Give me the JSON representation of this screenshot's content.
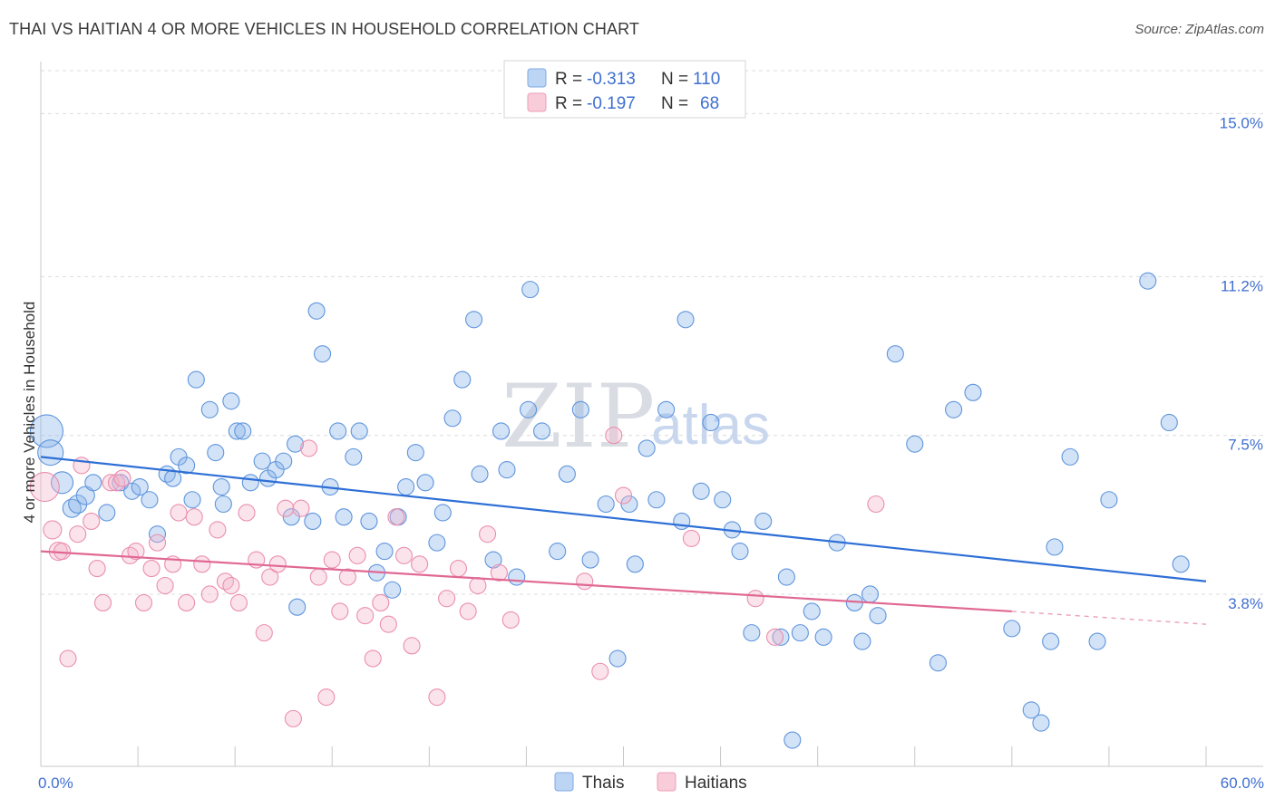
{
  "header": {
    "title": "THAI VS HAITIAN 4 OR MORE VEHICLES IN HOUSEHOLD CORRELATION CHART",
    "source": "Source: ZipAtlas.com"
  },
  "watermark": {
    "zip": "ZIP",
    "atlas": "atlas"
  },
  "legend": {
    "rows": [
      {
        "r_label": "R =",
        "r_value": "-0.313",
        "n_label": "N =",
        "n_value": "110",
        "color": "#a9c8f0"
      },
      {
        "r_label": "R =",
        "r_value": "-0.197",
        "n_label": "N =",
        "n_value": "68",
        "color": "#f5b6ca"
      }
    ]
  },
  "bottom_legend": [
    {
      "label": "Thais",
      "color": "#a9c8f0"
    },
    {
      "label": "Haitians",
      "color": "#f5b6ca"
    }
  ],
  "chart_data": {
    "type": "scatter",
    "ylabel": "4 or more Vehicles in Household",
    "xlabel": "",
    "xlim": [
      0,
      60
    ],
    "ylim": [
      0.0,
      16.0
    ],
    "x_tick_labels": [
      {
        "value": 0,
        "label": "0.0%"
      },
      {
        "value": 60,
        "label": "60.0%"
      }
    ],
    "y_tick_labels": [
      {
        "value": 3.8,
        "label": "3.8%"
      },
      {
        "value": 7.5,
        "label": "7.5%"
      },
      {
        "value": 11.2,
        "label": "11.2%"
      },
      {
        "value": 15.0,
        "label": "15.0%"
      }
    ],
    "grid": "horizontal-dashed",
    "series": [
      {
        "name": "Thais",
        "color": "#8ab4ea",
        "stroke": "#5f95dc",
        "trend": {
          "x0": 0,
          "y0": 7.0,
          "x1": 60,
          "y1": 4.1
        },
        "points": [
          [
            0.3,
            7.6,
            18
          ],
          [
            0.5,
            7.1,
            14
          ],
          [
            1.1,
            6.4,
            12
          ],
          [
            1.6,
            5.8,
            10
          ],
          [
            1.9,
            5.9,
            10
          ],
          [
            2.3,
            6.1,
            10
          ],
          [
            2.7,
            6.4,
            9
          ],
          [
            3.4,
            5.7,
            9
          ],
          [
            4.1,
            6.4,
            9
          ],
          [
            4.7,
            6.2,
            9
          ],
          [
            5.1,
            6.3,
            9
          ],
          [
            5.6,
            6.0,
            9
          ],
          [
            6.0,
            5.2,
            9
          ],
          [
            6.5,
            6.6,
            9
          ],
          [
            6.8,
            6.5,
            9
          ],
          [
            7.1,
            7.0,
            9
          ],
          [
            7.5,
            6.8,
            9
          ],
          [
            7.8,
            6.0,
            9
          ],
          [
            8.0,
            8.8,
            9
          ],
          [
            8.7,
            8.1,
            9
          ],
          [
            9.0,
            7.1,
            9
          ],
          [
            9.4,
            5.9,
            9
          ],
          [
            9.3,
            6.3,
            9
          ],
          [
            9.8,
            8.3,
            9
          ],
          [
            10.1,
            7.6,
            9
          ],
          [
            10.4,
            7.6,
            9
          ],
          [
            10.8,
            6.4,
            9
          ],
          [
            11.4,
            6.9,
            9
          ],
          [
            11.7,
            6.5,
            9
          ],
          [
            12.1,
            6.7,
            9
          ],
          [
            12.5,
            6.9,
            9
          ],
          [
            12.9,
            5.6,
            9
          ],
          [
            13.2,
            3.5,
            9
          ],
          [
            13.1,
            7.3,
            9
          ],
          [
            14.0,
            5.5,
            9
          ],
          [
            14.2,
            10.4,
            9
          ],
          [
            14.5,
            9.4,
            9
          ],
          [
            14.9,
            6.3,
            9
          ],
          [
            15.3,
            7.6,
            9
          ],
          [
            15.6,
            5.6,
            9
          ],
          [
            16.1,
            7.0,
            9
          ],
          [
            16.4,
            7.6,
            9
          ],
          [
            16.9,
            5.5,
            9
          ],
          [
            17.3,
            4.3,
            9
          ],
          [
            17.7,
            4.8,
            9
          ],
          [
            18.1,
            3.9,
            9
          ],
          [
            18.4,
            5.6,
            9
          ],
          [
            18.8,
            6.3,
            9
          ],
          [
            19.3,
            7.1,
            9
          ],
          [
            19.8,
            6.4,
            9
          ],
          [
            20.4,
            5.0,
            9
          ],
          [
            20.7,
            5.7,
            9
          ],
          [
            21.2,
            7.9,
            9
          ],
          [
            21.7,
            8.8,
            9
          ],
          [
            22.3,
            10.2,
            9
          ],
          [
            22.6,
            6.6,
            9
          ],
          [
            23.3,
            4.6,
            9
          ],
          [
            23.7,
            7.6,
            9
          ],
          [
            24.0,
            6.7,
            9
          ],
          [
            24.5,
            4.2,
            9
          ],
          [
            25.1,
            8.1,
            9
          ],
          [
            25.2,
            10.9,
            9
          ],
          [
            25.8,
            7.6,
            9
          ],
          [
            26.6,
            4.8,
            9
          ],
          [
            27.1,
            6.6,
            9
          ],
          [
            27.8,
            8.1,
            9
          ],
          [
            28.3,
            4.6,
            9
          ],
          [
            29.1,
            5.9,
            9
          ],
          [
            29.7,
            2.3,
            9
          ],
          [
            30.3,
            5.9,
            9
          ],
          [
            30.6,
            4.5,
            9
          ],
          [
            31.2,
            7.2,
            9
          ],
          [
            31.7,
            6.0,
            9
          ],
          [
            32.2,
            8.1,
            9
          ],
          [
            33.0,
            5.5,
            9
          ],
          [
            33.2,
            10.2,
            9
          ],
          [
            34.0,
            6.2,
            9
          ],
          [
            34.5,
            7.8,
            9
          ],
          [
            35.1,
            6.0,
            9
          ],
          [
            35.6,
            5.3,
            9
          ],
          [
            36.0,
            4.8,
            9
          ],
          [
            36.6,
            2.9,
            9
          ],
          [
            37.2,
            5.5,
            9
          ],
          [
            38.1,
            2.8,
            9
          ],
          [
            38.4,
            4.2,
            9
          ],
          [
            38.7,
            0.4,
            9
          ],
          [
            39.1,
            2.9,
            9
          ],
          [
            39.7,
            3.4,
            9
          ],
          [
            40.3,
            2.8,
            9
          ],
          [
            41.0,
            5.0,
            9
          ],
          [
            41.9,
            3.6,
            9
          ],
          [
            42.3,
            2.7,
            9
          ],
          [
            42.7,
            3.8,
            9
          ],
          [
            43.1,
            3.3,
            9
          ],
          [
            44.0,
            9.4,
            9
          ],
          [
            45.0,
            7.3,
            9
          ],
          [
            46.2,
            2.2,
            9
          ],
          [
            47.0,
            8.1,
            9
          ],
          [
            48.0,
            8.5,
            9
          ],
          [
            50.0,
            3.0,
            9
          ],
          [
            51.0,
            1.1,
            9
          ],
          [
            51.5,
            0.8,
            9
          ],
          [
            52.0,
            2.7,
            9
          ],
          [
            52.2,
            4.9,
            9
          ],
          [
            53.0,
            7.0,
            9
          ],
          [
            54.4,
            2.7,
            9
          ],
          [
            55.0,
            6.0,
            9
          ],
          [
            57.0,
            11.1,
            9
          ],
          [
            58.1,
            7.8,
            9
          ],
          [
            58.7,
            4.5,
            9
          ]
        ]
      },
      {
        "name": "Haitians",
        "color": "#f5b6ca",
        "stroke": "#ea8eaf",
        "trend": {
          "x0": 0,
          "y0": 4.8,
          "x1": 50,
          "y1": 3.4,
          "dash_x1": 60,
          "dash_y1": 3.1
        },
        "points": [
          [
            0.2,
            6.3,
            16
          ],
          [
            0.6,
            5.3,
            10
          ],
          [
            0.9,
            4.8,
            10
          ],
          [
            1.1,
            4.8,
            9
          ],
          [
            1.4,
            2.3,
            9
          ],
          [
            1.9,
            5.2,
            9
          ],
          [
            2.1,
            6.8,
            9
          ],
          [
            2.6,
            5.5,
            9
          ],
          [
            2.9,
            4.4,
            9
          ],
          [
            3.2,
            3.6,
            9
          ],
          [
            3.6,
            6.4,
            9
          ],
          [
            3.9,
            6.4,
            9
          ],
          [
            4.2,
            6.5,
            9
          ],
          [
            4.6,
            4.7,
            9
          ],
          [
            4.9,
            4.8,
            9
          ],
          [
            5.3,
            3.6,
            9
          ],
          [
            5.7,
            4.4,
            9
          ],
          [
            6.0,
            5.0,
            9
          ],
          [
            6.4,
            4.0,
            9
          ],
          [
            6.8,
            4.5,
            9
          ],
          [
            7.1,
            5.7,
            9
          ],
          [
            7.5,
            3.6,
            9
          ],
          [
            7.9,
            5.6,
            9
          ],
          [
            8.3,
            4.5,
            9
          ],
          [
            8.7,
            3.8,
            9
          ],
          [
            9.1,
            5.3,
            9
          ],
          [
            9.5,
            4.1,
            9
          ],
          [
            9.8,
            4.0,
            9
          ],
          [
            10.2,
            3.6,
            9
          ],
          [
            10.6,
            5.7,
            9
          ],
          [
            11.1,
            4.6,
            9
          ],
          [
            11.5,
            2.9,
            9
          ],
          [
            11.8,
            4.2,
            9
          ],
          [
            12.2,
            4.5,
            9
          ],
          [
            12.6,
            5.8,
            9
          ],
          [
            13.0,
            0.9,
            9
          ],
          [
            13.4,
            5.8,
            9
          ],
          [
            13.8,
            7.2,
            9
          ],
          [
            14.3,
            4.2,
            9
          ],
          [
            14.7,
            1.4,
            9
          ],
          [
            15.0,
            4.6,
            9
          ],
          [
            15.4,
            3.4,
            9
          ],
          [
            15.8,
            4.2,
            9
          ],
          [
            16.3,
            4.7,
            9
          ],
          [
            16.7,
            3.3,
            9
          ],
          [
            17.1,
            2.3,
            9
          ],
          [
            17.5,
            3.6,
            9
          ],
          [
            17.9,
            3.1,
            9
          ],
          [
            18.3,
            5.6,
            9
          ],
          [
            18.7,
            4.7,
            9
          ],
          [
            19.1,
            2.6,
            9
          ],
          [
            19.5,
            4.5,
            9
          ],
          [
            20.4,
            1.4,
            9
          ],
          [
            20.9,
            3.7,
            9
          ],
          [
            21.5,
            4.4,
            9
          ],
          [
            22.0,
            3.4,
            9
          ],
          [
            22.5,
            4.0,
            9
          ],
          [
            23.0,
            5.2,
            9
          ],
          [
            23.6,
            4.3,
            9
          ],
          [
            24.2,
            3.2,
            9
          ],
          [
            28.0,
            4.1,
            9
          ],
          [
            28.8,
            2.0,
            9
          ],
          [
            29.5,
            7.5,
            9
          ],
          [
            30.0,
            6.1,
            9
          ],
          [
            33.5,
            5.1,
            9
          ],
          [
            36.8,
            3.7,
            9
          ],
          [
            37.8,
            2.8,
            9
          ],
          [
            43.0,
            5.9,
            9
          ]
        ]
      }
    ]
  }
}
